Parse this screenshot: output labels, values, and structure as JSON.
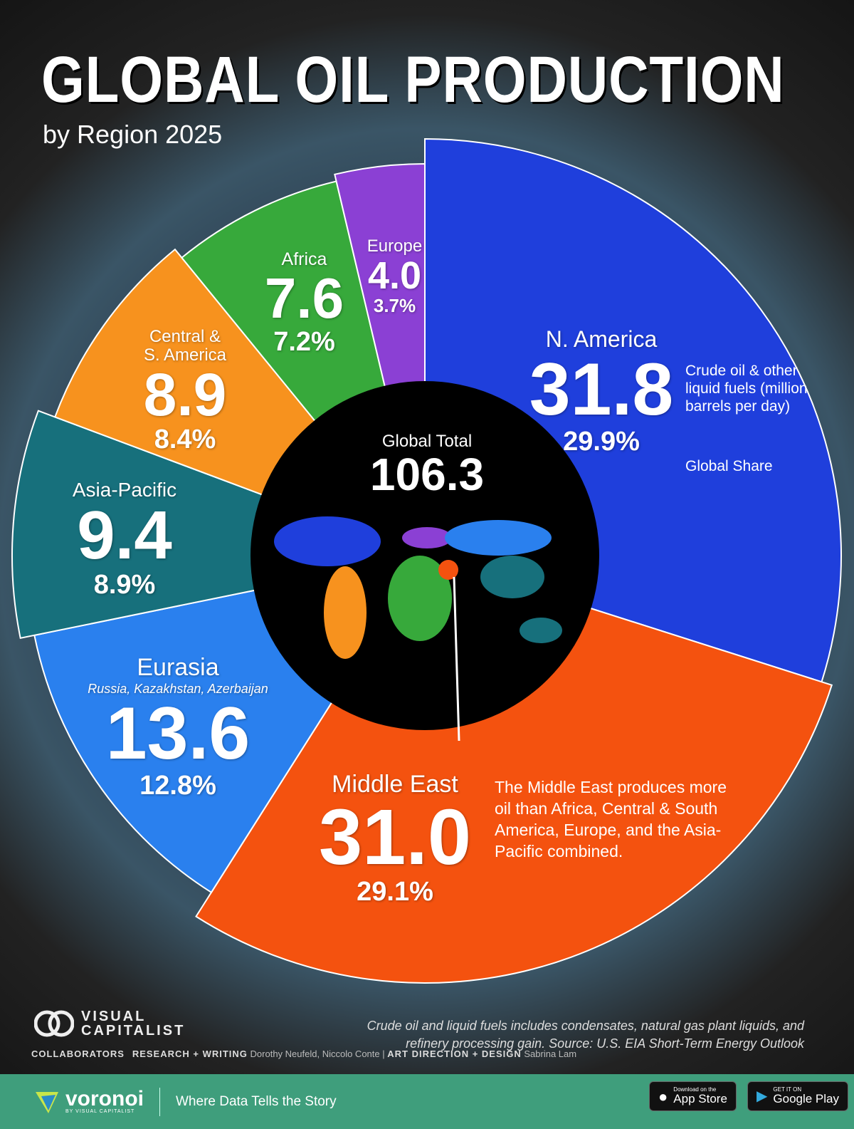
{
  "header": {
    "title": "GLOBAL OIL PRODUCTION",
    "subtitle": "by Region 2025"
  },
  "chart_data": {
    "type": "pie",
    "title": "GLOBAL OIL PRODUCTION",
    "subtitle": "by Region 2025",
    "unit": "Crude oil & other liquid fuels (million barrels per day)",
    "share_label": "Global Share",
    "total_label": "Global Total",
    "total": "106.3",
    "slices": [
      {
        "name": "N. America",
        "value": "31.8",
        "share": "29.9%",
        "pct": 29.9,
        "color": "#1f3fdc"
      },
      {
        "name": "Middle East",
        "value": "31.0",
        "share": "29.1%",
        "pct": 29.1,
        "color": "#f4520f"
      },
      {
        "name": "Eurasia",
        "sub": "Russia, Kazakhstan, Azerbaijan",
        "value": "13.6",
        "share": "12.8%",
        "pct": 12.8,
        "color": "#2a80ee"
      },
      {
        "name": "Asia-Pacific",
        "value": "9.4",
        "share": "8.9%",
        "pct": 8.9,
        "color": "#17707c"
      },
      {
        "name": "Central & S. America",
        "value": "8.9",
        "share": "8.4%",
        "pct": 8.4,
        "color": "#f7921e"
      },
      {
        "name": "Africa",
        "value": "7.6",
        "share": "7.2%",
        "pct": 7.2,
        "color": "#37a93b"
      },
      {
        "name": "Europe",
        "value": "4.0",
        "share": "3.7%",
        "pct": 3.7,
        "color": "#8b40d4"
      }
    ],
    "annotation": "The Middle East produces more oil than Africa, Central & South America, Europe, and the Asia-Pacific combined."
  },
  "labels": {
    "csa_line1": "Central &",
    "csa_line2": "S. America"
  },
  "footer": {
    "note": "Crude oil and liquid fuels includes condensates, natural gas plant liquids, and refinery processing gain. Source: U.S. EIA Short-Term Energy Outlook",
    "brand_line1": "VISUAL",
    "brand_line2": "CAPITALIST",
    "collaborators": "COLLABORATORS",
    "research_label": "RESEARCH + WRITING",
    "research": "Dorothy Neufeld, Niccolo Conte",
    "sep": "|",
    "design_label": "ART DIRECTION + DESIGN",
    "design": "Sabrina Lam",
    "voronoi": "voronoi",
    "voronoi_sub": "BY VISUAL CAPITALIST",
    "tagline": "Where Data Tells the Story",
    "appstore_small": "Download on the",
    "appstore": "App Store",
    "gplay_small": "GET IT ON",
    "gplay": "Google Play"
  }
}
